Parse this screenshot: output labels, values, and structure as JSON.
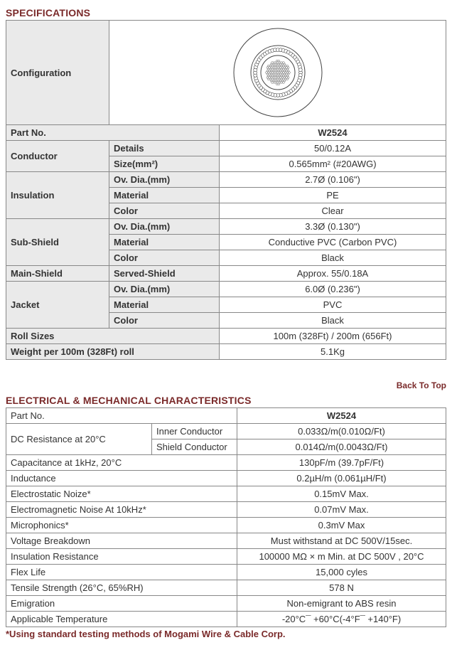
{
  "sections": {
    "spec_title": "SPECIFICATIONS",
    "elec_title": "ELECTRICAL & MECHANICAL CHARACTERISTICS",
    "back_to_top": "Back To Top",
    "footnote": "*Using standard testing methods of Mogami Wire & Cable Corp."
  },
  "spec_table": {
    "configuration_label": "Configuration",
    "part_no_label": "Part No.",
    "part_no_value": "W2524",
    "conductor_label": "Conductor",
    "conductor_details_label": "Details",
    "conductor_details_value": "50/0.12A",
    "conductor_size_label": "Size(mm²)",
    "conductor_size_value": "0.565mm² (#20AWG)",
    "insulation_label": "Insulation",
    "insulation_ovdia_label": "Ov. Dia.(mm)",
    "insulation_ovdia_value": "2.7Ø (0.106\")",
    "insulation_material_label": "Material",
    "insulation_material_value": "PE",
    "insulation_color_label": "Color",
    "insulation_color_value": "Clear",
    "subshield_label": "Sub-Shield",
    "subshield_ovdia_label": "Ov. Dia.(mm)",
    "subshield_ovdia_value": "3.3Ø (0.130\")",
    "subshield_material_label": "Material",
    "subshield_material_value": "Conductive PVC (Carbon PVC)",
    "subshield_color_label": "Color",
    "subshield_color_value": "Black",
    "mainshield_label": "Main-Shield",
    "mainshield_served_label": "Served-Shield",
    "mainshield_served_value": "Approx. 55/0.18A",
    "jacket_label": "Jacket",
    "jacket_ovdia_label": "Ov. Dia.(mm)",
    "jacket_ovdia_value": "6.0Ø (0.236\")",
    "jacket_material_label": "Material",
    "jacket_material_value": "PVC",
    "jacket_color_label": "Color",
    "jacket_color_value": "Black",
    "rollsizes_label": "Roll Sizes",
    "rollsizes_value": "100m (328Ft) / 200m (656Ft)",
    "weight_label": "Weight per 100m (328Ft) roll",
    "weight_value": "5.1Kg"
  },
  "elec_table": {
    "part_no_label": "Part No.",
    "part_no_value": "W2524",
    "dc_res_label": "DC Resistance at 20°C",
    "dc_inner_label": "Inner Conductor",
    "dc_inner_value": "0.033Ω/m(0.010Ω/Ft)",
    "dc_shield_label": "Shield Conductor",
    "dc_shield_value": "0.014Ω/m(0.0043Ω/Ft)",
    "capacitance_label": "Capacitance at 1kHz, 20°C",
    "capacitance_value": "130pF/m (39.7pF/Ft)",
    "inductance_label": "Inductance",
    "inductance_value": "0.2µH/m (0.061µH/Ft)",
    "electrostatic_label": "Electrostatic Noize*",
    "electrostatic_value": "0.15mV Max.",
    "em_label": "Electromagnetic Noise At 10kHz*",
    "em_value": "0.07mV Max.",
    "microphonics_label": "Microphonics*",
    "microphonics_value": "0.3mV Max",
    "voltage_label": "Voltage Breakdown",
    "voltage_value": "Must withstand at DC 500V/15sec.",
    "insres_label": "Insulation Resistance",
    "insres_value": "100000 MΩ × m Min. at DC 500V , 20°C",
    "flex_label": "Flex Life",
    "flex_value": "15,000 cyles",
    "tensile_label": "Tensile Strength (26°C, 65%RH)",
    "tensile_value": "578 N",
    "emigration_label": "Emigration",
    "emigration_value": "Non-emigrant to ABS resin",
    "temp_label": "Applicable Temperature",
    "temp_value": "-20°C¯ +60°C(-4°F¯ +140°F)"
  },
  "styling": {
    "accent_color": "#7a2a2a",
    "label_bg": "#eaeaea",
    "border_color": "#888888"
  },
  "diagram": {
    "type": "cable-cross-section",
    "outer_radius": 62,
    "layers": [
      {
        "r": 62,
        "fill": "#ffffff",
        "stroke": "#444"
      },
      {
        "r": 38,
        "fill": "none",
        "stroke": "#444"
      },
      {
        "r": 32,
        "fill": "#ffffff",
        "stroke": "#444",
        "dot_ring": true,
        "dot_r": 2.5,
        "dot_count": 52
      },
      {
        "r": 24,
        "fill": "#ffffff",
        "stroke": "#444"
      },
      {
        "r": 18,
        "fill": "none",
        "stroke": "none",
        "stranded_core": true,
        "strand_r": 1.4
      }
    ]
  }
}
